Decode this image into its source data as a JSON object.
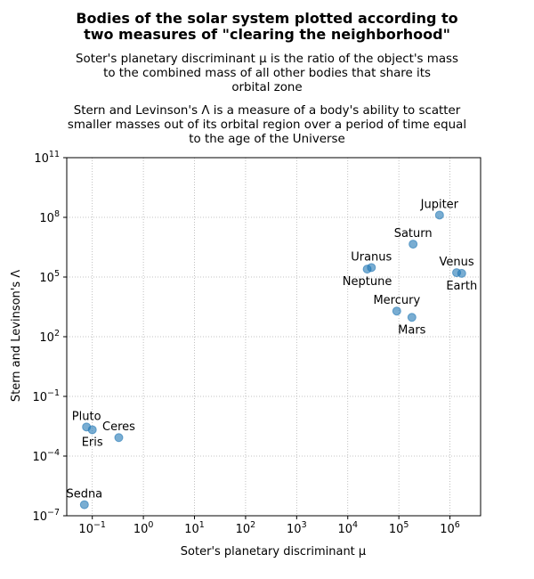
{
  "chart_data": {
    "type": "scatter",
    "title": [
      "Bodies of the solar system plotted according to",
      "two measures of \"clearing the neighborhood\""
    ],
    "subtitle_1": [
      "Soter's planetary discriminant μ is the ratio of the object's mass",
      "to the combined mass of all other bodies that share its",
      "orbital zone"
    ],
    "subtitle_2": [
      "Stern and Levinson's Λ is a measure of a body's ability to scatter",
      "smaller masses out of its orbital region over a period of time equal",
      "to the age of the Universe"
    ],
    "xlabel": "Soter's planetary discriminant μ",
    "ylabel": "Stern and Levinson's Λ",
    "xscale": "log",
    "yscale": "log",
    "xlim_exp": [
      -1.5,
      6.6
    ],
    "ylim_exp": [
      -7,
      11
    ],
    "x_ticks": [
      {
        "base": "10",
        "exp": "−1",
        "value": -1
      },
      {
        "base": "10",
        "exp": "0",
        "value": 0
      },
      {
        "base": "10",
        "exp": "1",
        "value": 1
      },
      {
        "base": "10",
        "exp": "2",
        "value": 2
      },
      {
        "base": "10",
        "exp": "3",
        "value": 3
      },
      {
        "base": "10",
        "exp": "4",
        "value": 4
      },
      {
        "base": "10",
        "exp": "5",
        "value": 5
      },
      {
        "base": "10",
        "exp": "6",
        "value": 6
      }
    ],
    "y_ticks": [
      {
        "base": "10",
        "exp": "−7",
        "value": -7
      },
      {
        "base": "10",
        "exp": "−4",
        "value": -4
      },
      {
        "base": "10",
        "exp": "−1",
        "value": -1
      },
      {
        "base": "10",
        "exp": "2",
        "value": 2
      },
      {
        "base": "10",
        "exp": "5",
        "value": 5
      },
      {
        "base": "10",
        "exp": "8",
        "value": 8
      },
      {
        "base": "10",
        "exp": "11",
        "value": 11
      }
    ],
    "grid": true,
    "marker_color": "#1f77b4",
    "points": [
      {
        "name": "Jupiter",
        "mu": 625000,
        "lambda": 130000000,
        "label_pos": "above"
      },
      {
        "name": "Saturn",
        "mu": 190000,
        "lambda": 4500000,
        "label_pos": "above"
      },
      {
        "name": "Uranus",
        "mu": 29000,
        "lambda": 300000,
        "label_pos": "above"
      },
      {
        "name": "Neptune",
        "mu": 24000,
        "lambda": 250000,
        "label_pos": "below"
      },
      {
        "name": "Venus",
        "mu": 1350000,
        "lambda": 166000,
        "label_pos": "above"
      },
      {
        "name": "Earth",
        "mu": 1700000,
        "lambda": 153000,
        "label_pos": "below"
      },
      {
        "name": "Mercury",
        "mu": 91000,
        "lambda": 1950,
        "label_pos": "above"
      },
      {
        "name": "Mars",
        "mu": 180000,
        "lambda": 940,
        "label_pos": "below"
      },
      {
        "name": "Pluto",
        "mu": 0.077,
        "lambda": 0.0029,
        "label_pos": "above"
      },
      {
        "name": "Eris",
        "mu": 0.1,
        "lambda": 0.0021,
        "label_pos": "below"
      },
      {
        "name": "Ceres",
        "mu": 0.33,
        "lambda": 0.00085,
        "label_pos": "above"
      },
      {
        "name": "Sedna",
        "mu": 0.07,
        "lambda": 3.6e-07,
        "label_pos": "above"
      }
    ]
  }
}
